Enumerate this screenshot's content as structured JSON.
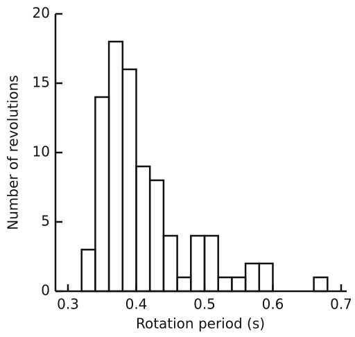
{
  "chart_data": {
    "type": "histogram",
    "x_label": "Rotation period (s)",
    "y_label": "Number of revolutions",
    "bins": [
      0.32,
      0.34,
      0.36,
      0.38,
      0.4,
      0.42,
      0.44,
      0.46,
      0.48,
      0.5,
      0.52,
      0.54,
      0.56,
      0.58,
      0.6,
      0.62,
      0.64,
      0.66,
      0.68
    ],
    "counts": [
      3,
      14,
      18,
      16,
      9,
      8,
      4,
      1,
      4,
      4,
      1,
      1,
      2,
      2,
      0,
      0,
      0,
      1
    ],
    "color": "#111111",
    "xlim": [
      0.3,
      0.7
    ],
    "xticks": [
      0.3,
      0.4,
      0.5,
      0.6,
      0.7
    ],
    "ylim": [
      0,
      20
    ],
    "yticks": [
      0,
      5,
      10,
      15,
      20
    ]
  }
}
